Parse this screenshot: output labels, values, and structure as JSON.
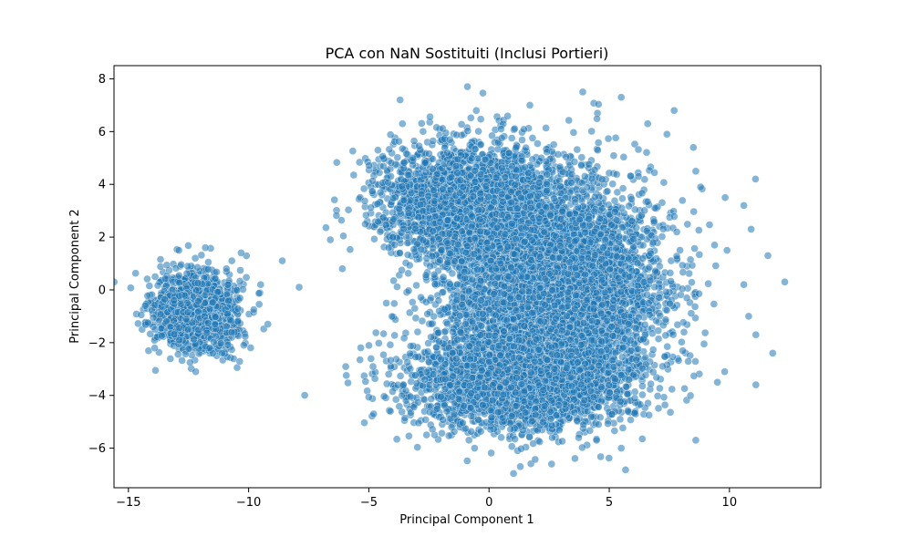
{
  "chart_data": {
    "type": "scatter",
    "title": "PCA con NaN Sostituiti (Inclusi Portieri)",
    "xlabel": "Principal Component 1",
    "ylabel": "Principal Component 2",
    "xlim": [
      -15.6,
      13.8
    ],
    "ylim": [
      -7.5,
      8.5
    ],
    "xticks": [
      -15,
      -10,
      -5,
      0,
      5,
      10
    ],
    "yticks": [
      -6,
      -4,
      -2,
      0,
      2,
      4,
      6,
      8
    ],
    "xtick_labels": [
      "−15",
      "−10",
      "−5",
      "0",
      "5",
      "10"
    ],
    "ytick_labels": [
      "−6",
      "−4",
      "−2",
      "0",
      "2",
      "4",
      "6",
      "8"
    ],
    "grid": false,
    "legend": "none",
    "colors": {
      "point": "#1f77b4",
      "edge": "#ffffff"
    },
    "clusters": [
      {
        "center": [
          -12.2,
          -0.8
        ],
        "spread": [
          0.85,
          0.75
        ],
        "count": 1400
      },
      {
        "center": [
          -0.8,
          3.3
        ],
        "spread": [
          1.8,
          1.1
        ],
        "count": 2600
      },
      {
        "center": [
          2.6,
          0.2
        ],
        "spread": [
          2.2,
          1.9
        ],
        "count": 5200
      },
      {
        "center": [
          1.3,
          -3.5
        ],
        "spread": [
          2.3,
          0.9
        ],
        "count": 2600
      }
    ],
    "outliers": [
      [
        -7.9,
        0.1
      ],
      [
        -8.6,
        1.1
      ],
      [
        -9.2,
        -1.3
      ],
      [
        -6.6,
        1.9
      ],
      [
        -6.1,
        0.8
      ],
      [
        -4.8,
        -4.7
      ],
      [
        -4.1,
        -4.6
      ],
      [
        -3.6,
        6.3
      ],
      [
        -3.7,
        7.2
      ],
      [
        -0.9,
        7.7
      ],
      [
        0.5,
        6.1
      ],
      [
        1.7,
        7.0
      ],
      [
        3.9,
        7.5
      ],
      [
        5.5,
        7.3
      ],
      [
        7.7,
        6.8
      ],
      [
        8.5,
        5.4
      ],
      [
        8.6,
        4.5
      ],
      [
        8.8,
        3.9
      ],
      [
        10.6,
        3.2
      ],
      [
        10.9,
        2.3
      ],
      [
        11.6,
        1.3
      ],
      [
        12.3,
        0.3
      ],
      [
        11.1,
        -1.7
      ],
      [
        11.8,
        -2.4
      ],
      [
        11.1,
        -3.6
      ],
      [
        10.8,
        -1.0
      ],
      [
        9.5,
        -3.5
      ],
      [
        8.6,
        -5.7
      ],
      [
        5.5,
        -6.0
      ],
      [
        2.6,
        -6.6
      ],
      [
        1.3,
        -6.7
      ],
      [
        -0.6,
        -6.0
      ],
      [
        -2.6,
        -5.5
      ],
      [
        9.8,
        -3.1
      ],
      [
        10.6,
        0.2
      ],
      [
        9.9,
        1.5
      ],
      [
        7.4,
        5.9
      ],
      [
        6.6,
        6.3
      ],
      [
        -12.2,
        -3.1
      ],
      [
        -10.2,
        -2.1
      ],
      [
        -14.3,
        -0.6
      ],
      [
        -11.8,
        1.6
      ],
      [
        -12.9,
        1.5
      ],
      [
        -9.5,
        0.2
      ],
      [
        -10.7,
        1.1
      ]
    ]
  }
}
